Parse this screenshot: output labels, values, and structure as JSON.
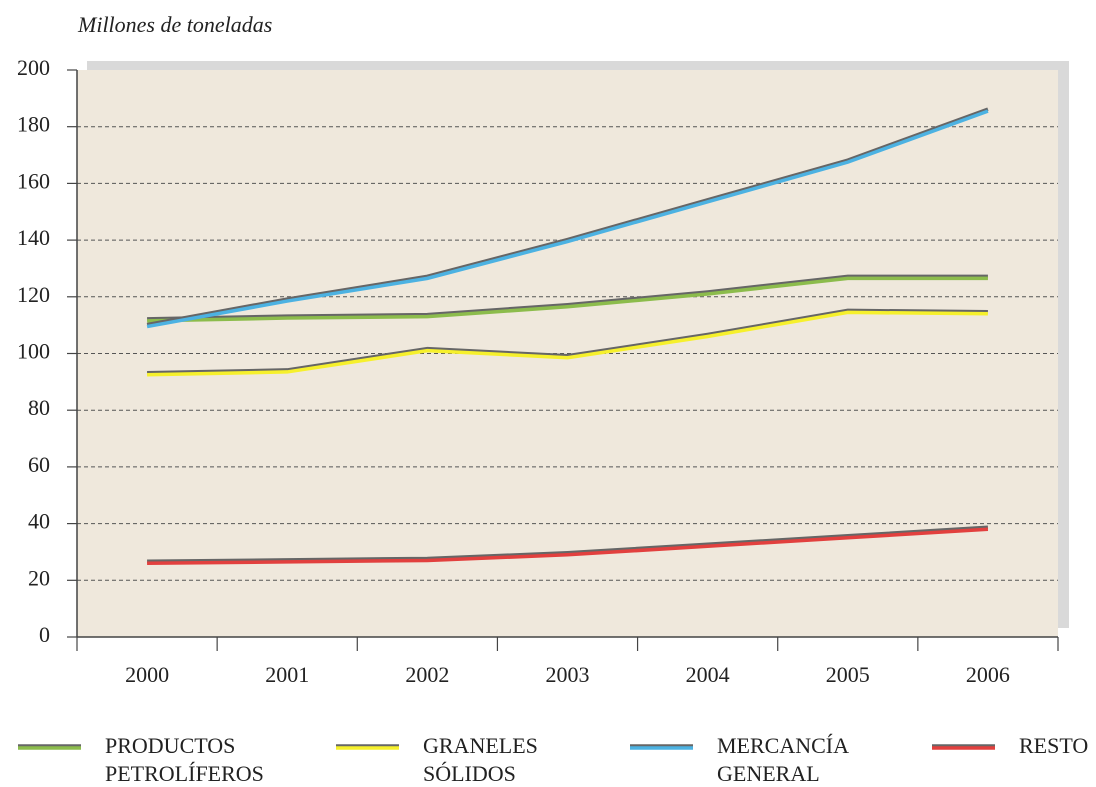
{
  "chart_data": {
    "type": "line",
    "y_label": "Millones de toneladas",
    "categories": [
      "2000",
      "2001",
      "2002",
      "2003",
      "2004",
      "2005",
      "2006"
    ],
    "series": [
      {
        "name": "PRODUCTOS PETROLÍFEROS",
        "color": "#8cbc4c",
        "values": [
          111.5,
          112.5,
          113,
          116.5,
          121,
          126.5,
          126.5
        ]
      },
      {
        "name": "GRANELES SÓLIDOS",
        "color": "#f6f02c",
        "values": [
          92.5,
          93.5,
          101,
          98.5,
          106,
          114.5,
          114
        ]
      },
      {
        "name": "MERCANCÍA GENERAL",
        "color": "#4cb2e2",
        "values": [
          109.5,
          118.5,
          126.5,
          139.5,
          153.5,
          167.5,
          185.5
        ]
      },
      {
        "name": "RESTO",
        "color": "#e2403e",
        "values": [
          26,
          26.5,
          27,
          29,
          32,
          35,
          38
        ]
      }
    ],
    "ylim": [
      0,
      200
    ],
    "yticks": [
      0,
      20,
      40,
      60,
      80,
      100,
      120,
      140,
      160,
      180,
      200
    ],
    "grid": true,
    "legend": "bottom"
  }
}
